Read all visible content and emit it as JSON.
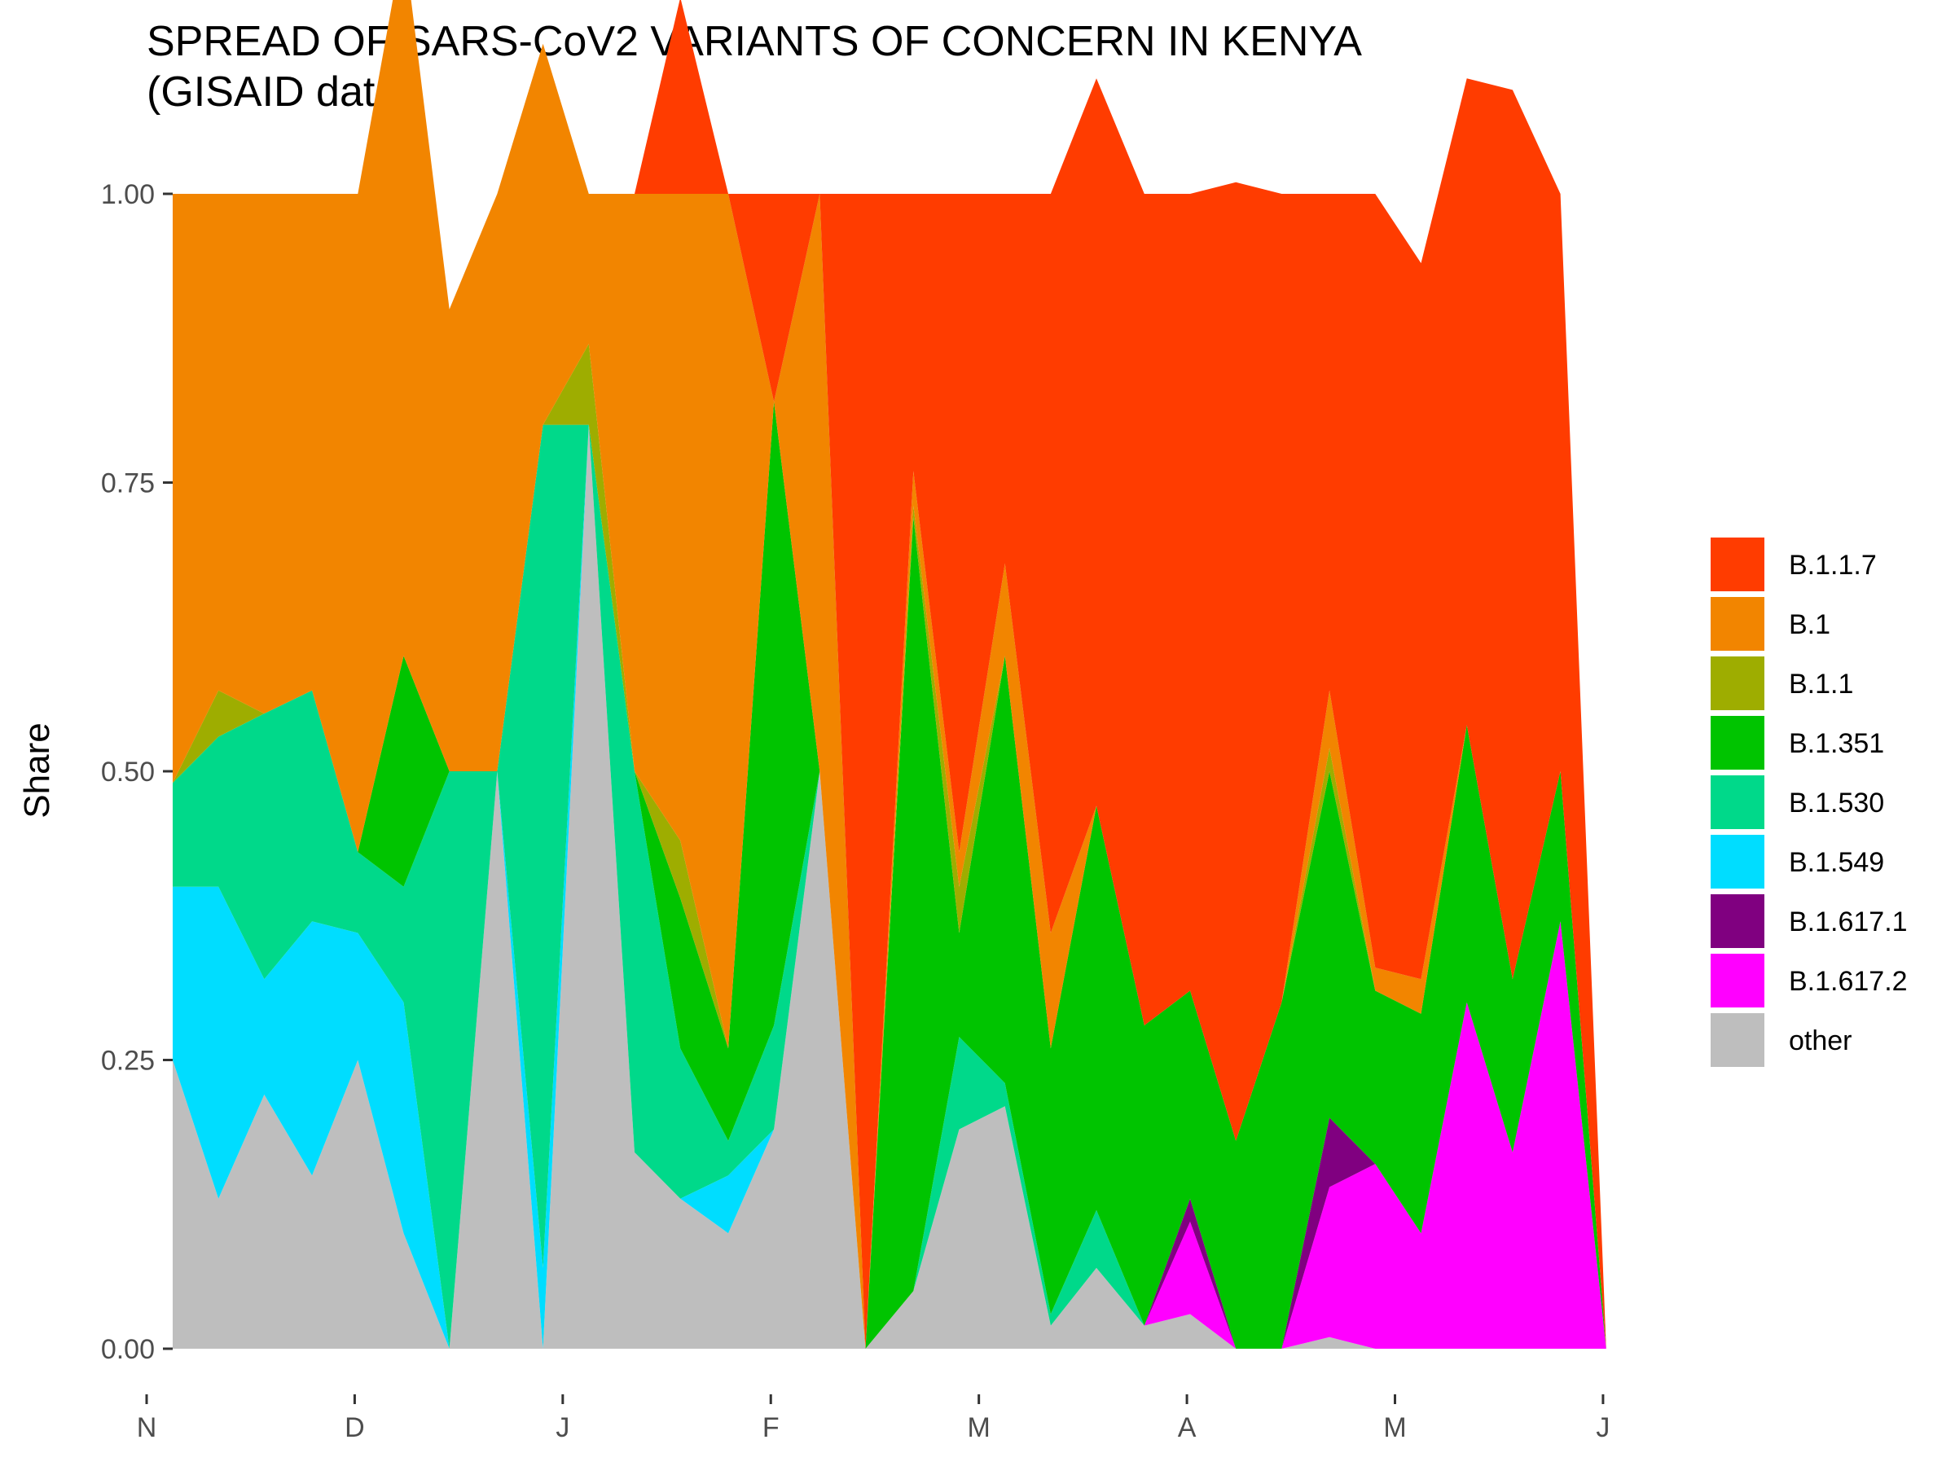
{
  "chart_data": {
    "type": "area",
    "title": "SPREAD OF SARS-CoV2 VARIANTS OF CONCERN IN KENYA",
    "subtitle": "(GISAID data)",
    "xlabel": "",
    "ylabel": "Share",
    "ylim": [
      0,
      1
    ],
    "yticks": [
      "0.00",
      "0.25",
      "0.50",
      "0.75",
      "1.00"
    ],
    "x_tick_labels": [
      "N",
      "D",
      "J",
      "F",
      "M",
      "A",
      "M",
      "J"
    ],
    "grid": false,
    "legend_position": "right",
    "stacking_order": [
      "other",
      "B.1.617.2",
      "B.1.617.1",
      "B.1.549",
      "B.1.530",
      "B.1.351",
      "B.1.1",
      "B.1",
      "B.1.1.7"
    ],
    "x": [
      0,
      0.22,
      0.44,
      0.67,
      0.89,
      1.11,
      1.33,
      1.56,
      1.78,
      2.0,
      2.22,
      2.44,
      2.67,
      2.89,
      3.11,
      3.33,
      3.56,
      3.78,
      4.0,
      4.22,
      4.44,
      4.67,
      4.89,
      5.11,
      5.33,
      5.56,
      5.78,
      6.0,
      6.22,
      6.44,
      6.67,
      6.89,
      7.11
    ],
    "series": [
      {
        "name": "B.1.1.7",
        "color": "#FF3C00",
        "values": [
          0,
          0,
          0,
          0,
          0,
          0,
          0,
          0,
          0,
          0,
          0,
          0.17,
          0,
          0.18,
          0,
          1.0,
          0.24,
          0.57,
          0.32,
          0.64,
          0.63,
          0.72,
          0.69,
          0.83,
          0.7,
          0.43,
          0.67,
          0.62,
          0.56,
          0.77,
          0.5,
          0,
          0
        ]
      },
      {
        "name": "B.1",
        "color": "#F28500",
        "values": [
          0.51,
          0.43,
          0.45,
          0.43,
          0.57,
          0.62,
          0.4,
          0.5,
          0.33,
          0.13,
          0.5,
          0.56,
          0.74,
          0,
          0.5,
          0,
          0.03,
          0.03,
          0.08,
          0.1,
          0,
          0,
          0,
          0,
          0,
          0.05,
          0.02,
          0.03,
          0,
          0,
          0,
          0,
          0
        ]
      },
      {
        "name": "B.1.1",
        "color": "#9EAD00",
        "values": [
          0,
          0.04,
          0,
          0,
          0,
          0,
          0,
          0,
          0,
          0.07,
          0,
          0.05,
          0,
          0,
          0,
          0,
          0.01,
          0.04,
          0,
          0,
          0,
          0,
          0,
          0,
          0,
          0.02,
          0,
          0,
          0,
          0,
          0,
          0,
          0
        ]
      },
      {
        "name": "B.1.351",
        "color": "#00C400",
        "values": [
          0,
          0,
          0,
          0,
          0,
          0.2,
          0,
          0,
          0,
          0,
          0,
          0.13,
          0.08,
          0.54,
          0,
          0,
          0.67,
          0.09,
          0.37,
          0.23,
          0.35,
          0.26,
          0.18,
          0.18,
          0.3,
          0.3,
          0.15,
          0.19,
          0.24,
          0.15,
          0.13,
          0,
          0
        ]
      },
      {
        "name": "B.1.530",
        "color": "#00D98A",
        "values": [
          0.09,
          0.13,
          0.23,
          0.2,
          0.07,
          0.1,
          0.5,
          0,
          0.73,
          0,
          0.33,
          0.13,
          0.03,
          0.09,
          0,
          0,
          0,
          0.08,
          0.02,
          0.01,
          0.05,
          0,
          0,
          0,
          0,
          0,
          0,
          0,
          0,
          0,
          0,
          0,
          0
        ]
      },
      {
        "name": "B.1.549",
        "color": "#00DDFF",
        "values": [
          0.15,
          0.27,
          0.1,
          0.22,
          0.11,
          0.2,
          0,
          0,
          0.07,
          0,
          0,
          0,
          0.05,
          0,
          0,
          0,
          0,
          0,
          0,
          0,
          0,
          0,
          0,
          0,
          0,
          0,
          0,
          0,
          0,
          0,
          0,
          0,
          0
        ]
      },
      {
        "name": "B.1.617.1",
        "color": "#800080",
        "values": [
          0,
          0,
          0,
          0,
          0,
          0,
          0,
          0,
          0,
          0,
          0,
          0,
          0,
          0,
          0,
          0,
          0,
          0,
          0,
          0,
          0,
          0,
          0.02,
          0,
          0,
          0.06,
          0,
          0,
          0,
          0,
          0,
          0,
          0
        ]
      },
      {
        "name": "B.1.617.2",
        "color": "#FF00FF",
        "values": [
          0,
          0,
          0,
          0,
          0,
          0,
          0,
          0,
          0,
          0,
          0,
          0,
          0,
          0,
          0,
          0,
          0,
          0,
          0,
          0,
          0,
          0,
          0.08,
          0,
          0,
          0.13,
          0.16,
          0.1,
          0.3,
          0.17,
          0.37,
          0,
          0
        ]
      },
      {
        "name": "other",
        "color": "#BEBEBE",
        "values": [
          0.25,
          0.13,
          0.22,
          0.15,
          0.25,
          0.1,
          0,
          0.5,
          0,
          0.8,
          0.17,
          0.13,
          0.1,
          0.19,
          0.5,
          0,
          0.05,
          0.19,
          0.21,
          0.02,
          0.07,
          0.02,
          0.03,
          0,
          0,
          0.01,
          0,
          0,
          0,
          0,
          0,
          0,
          0
        ]
      }
    ]
  }
}
